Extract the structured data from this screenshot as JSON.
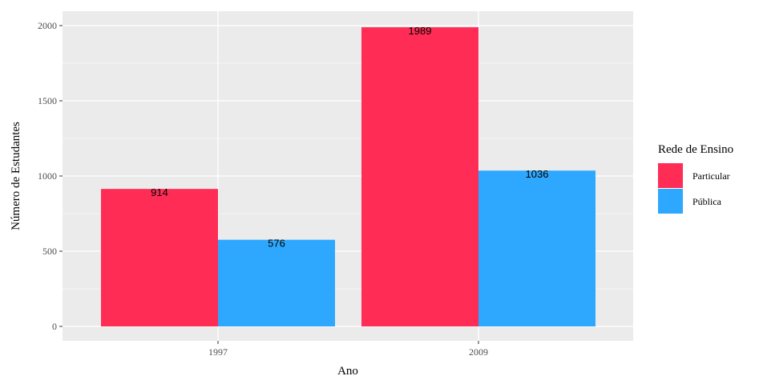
{
  "chart_data": {
    "type": "bar",
    "categories": [
      "1997",
      "2009"
    ],
    "series": [
      {
        "name": "Particular",
        "values": [
          914,
          1989
        ],
        "color": "#ff2d55",
        "labels": [
          "914",
          "1989"
        ]
      },
      {
        "name": "Pública",
        "values": [
          576,
          1036
        ],
        "color": "#2ea8ff",
        "labels": [
          "576",
          "1036"
        ]
      }
    ],
    "title": "",
    "xlabel": "Ano",
    "ylabel": "Número de Estudantes",
    "ylim": [
      -100,
      2080
    ],
    "yticks": [
      0,
      500,
      1000,
      1500,
      2000
    ],
    "ytick_labels": [
      "0",
      "500",
      "1000",
      "1500",
      "2000"
    ],
    "grid": true,
    "legend": {
      "title": "Rede de Ensino",
      "placement": "right"
    },
    "panel_background": "#ebebeb",
    "grid_color": "#ffffff"
  }
}
